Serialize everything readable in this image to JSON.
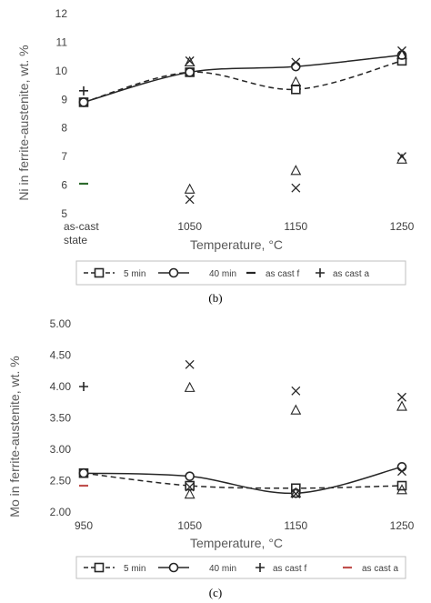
{
  "chart_data": [
    {
      "type": "line",
      "panel_label": "(b)",
      "xlabel": "Temperature, °C",
      "ylabel": "Ni in ferrite-austenite, wt. %",
      "ylim": [
        5,
        12
      ],
      "yticks": [
        "5",
        "6",
        "7",
        "8",
        "9",
        "10",
        "11",
        "12"
      ],
      "categories": [
        "as-cast state",
        "1050",
        "1150",
        "1250"
      ],
      "grid": false,
      "legend_position": "bottom",
      "legend": [
        "5 min",
        "40 min",
        "as cast f",
        "as cast a"
      ],
      "series": [
        {
          "name": "5 min",
          "style": "dashed",
          "marker": "square",
          "x": [
            0,
            1,
            2,
            3
          ],
          "values": [
            8.9,
            9.95,
            9.35,
            10.35
          ]
        },
        {
          "name": "40 min",
          "style": "solid",
          "marker": "circle",
          "x": [
            0,
            1,
            2,
            3
          ],
          "values": [
            8.9,
            9.95,
            10.15,
            10.55
          ]
        },
        {
          "name": "as cast f",
          "style": "none",
          "marker": "dash",
          "color": "#2e6b2e",
          "x": [
            0
          ],
          "values": [
            6.05
          ]
        },
        {
          "name": "as cast a",
          "style": "none",
          "marker": "plus",
          "x": [
            0
          ],
          "values": [
            9.3
          ]
        },
        {
          "style": "none",
          "marker": "triangle",
          "x": [
            1,
            2,
            3
          ],
          "values": [
            5.85,
            6.5,
            6.9
          ]
        },
        {
          "style": "none",
          "marker": "cross",
          "x": [
            1,
            2,
            3
          ],
          "values": [
            5.5,
            5.9,
            7.0
          ]
        },
        {
          "style": "none",
          "marker": "triangle",
          "x": [
            1,
            2,
            3
          ],
          "values": [
            10.3,
            9.6,
            10.55
          ]
        },
        {
          "style": "none",
          "marker": "cross",
          "x": [
            1,
            2,
            3
          ],
          "values": [
            10.35,
            10.3,
            10.7
          ]
        }
      ]
    },
    {
      "type": "line",
      "panel_label": "(c)",
      "xlabel": "Temperature, °C",
      "ylabel": "Mo in ferrite-austenite, wt. %",
      "ylim": [
        2.0,
        5.0
      ],
      "yticks": [
        "2.00",
        "2.50",
        "3.00",
        "3.50",
        "4.00",
        "4.50",
        "5.00"
      ],
      "categories": [
        "950",
        "1050",
        "1150",
        "1250"
      ],
      "grid": false,
      "legend_position": "bottom",
      "legend": [
        "5 min",
        "40 min",
        "as cast f",
        "as cast a"
      ],
      "series": [
        {
          "name": "5 min",
          "style": "dashed",
          "marker": "square",
          "x": [
            0,
            1,
            2,
            3
          ],
          "values": [
            2.62,
            2.42,
            2.38,
            2.42
          ]
        },
        {
          "name": "40 min",
          "style": "solid",
          "marker": "circle",
          "x": [
            0,
            1,
            2,
            3
          ],
          "values": [
            2.62,
            2.57,
            2.3,
            2.72
          ]
        },
        {
          "name": "as cast f",
          "style": "none",
          "marker": "plus",
          "x": [
            0
          ],
          "values": [
            4.0
          ]
        },
        {
          "name": "as cast a",
          "style": "none",
          "marker": "dash",
          "color": "#c0504d",
          "x": [
            0
          ],
          "values": [
            2.42
          ]
        },
        {
          "style": "none",
          "marker": "triangle",
          "x": [
            1,
            2,
            3
          ],
          "values": [
            3.98,
            3.62,
            3.68
          ]
        },
        {
          "style": "none",
          "marker": "cross",
          "x": [
            1,
            2,
            3
          ],
          "values": [
            4.35,
            3.93,
            3.83
          ]
        },
        {
          "style": "none",
          "marker": "triangle",
          "x": [
            1,
            2,
            3
          ],
          "values": [
            2.28,
            2.3,
            2.35
          ]
        },
        {
          "style": "none",
          "marker": "cross",
          "x": [
            1,
            2,
            3
          ],
          "values": [
            2.4,
            2.29,
            2.65
          ]
        }
      ]
    }
  ]
}
